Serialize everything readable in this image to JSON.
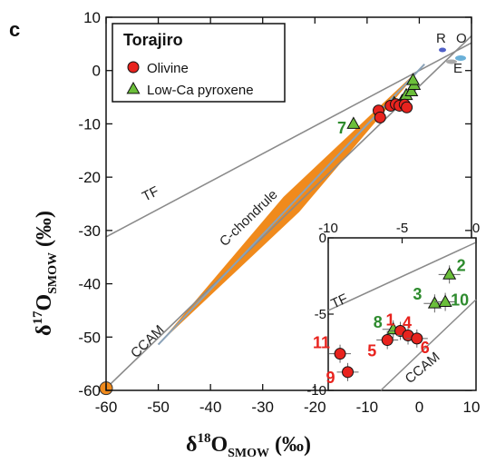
{
  "panel_label": "c",
  "chart_data": {
    "type": "scatter",
    "xlabel": "δ18OSMOW (‰)",
    "ylabel": "δ17OSMOW (‰)",
    "xlabel_parts": {
      "delta": "δ",
      "sup": "18",
      "main": "O",
      "sub": "SMOW",
      "unit": "(‰)"
    },
    "ylabel_parts": {
      "delta": "δ",
      "sup": "17",
      "main": "O",
      "sub": "SMOW",
      "unit": "(‰)"
    },
    "xlim": [
      -60,
      10
    ],
    "ylim": [
      -60,
      10
    ],
    "xticks": [
      "-60",
      "-50",
      "-40",
      "-30",
      "-20",
      "-10",
      "0",
      "10"
    ],
    "yticks": [
      "10",
      "0",
      "-10",
      "-20",
      "-30",
      "-40",
      "-50",
      "-60"
    ],
    "lines": [
      {
        "name": "TF",
        "x": [
          -60,
          10
        ],
        "y": [
          -31.2,
          5.2
        ]
      },
      {
        "name": "CCAM",
        "x": [
          -60,
          10
        ],
        "y": [
          -59.6,
          6.5
        ]
      },
      {
        "name": "C-chondrule",
        "x": [
          -50,
          1
        ],
        "y": [
          -51.4,
          1.2
        ]
      }
    ],
    "line_labels": [
      "TF",
      "CCAM",
      "C-chondrule"
    ],
    "legend": {
      "title": "Torajiro",
      "entries": [
        "Olivine",
        "Low-Ca pyroxene"
      ],
      "position": "top-left"
    },
    "series": [
      {
        "name": "Olivine",
        "color": "#e8231e",
        "marker": "circle",
        "points": [
          {
            "x": -7.8,
            "y": -7.5
          },
          {
            "x": -7.5,
            "y": -8.8
          },
          {
            "x": -5.5,
            "y": -6.6
          },
          {
            "x": -4.5,
            "y": -6.3
          },
          {
            "x": -3.8,
            "y": -6.6
          },
          {
            "x": -2.8,
            "y": -6.4
          },
          {
            "x": -2.4,
            "y": -6.9
          }
        ]
      },
      {
        "name": "Low-Ca pyroxene",
        "color": "#6bbf3a",
        "marker": "triangle",
        "points": [
          {
            "x": -12.6,
            "y": -10.0
          },
          {
            "x": -4.8,
            "y": -6.1
          },
          {
            "x": -3.3,
            "y": -5.7
          },
          {
            "x": -2.5,
            "y": -4.6
          },
          {
            "x": -1.5,
            "y": -3.9
          },
          {
            "x": -1.0,
            "y": -2.7
          },
          {
            "x": -1.2,
            "y": -1.8
          }
        ]
      }
    ],
    "label_7": {
      "text": "7",
      "color": "#2e8b2e"
    },
    "endmembers": [
      "R",
      "O",
      "E"
    ],
    "inset": {
      "xlim": [
        -10,
        0
      ],
      "ylim": [
        -10,
        0
      ],
      "xticks": [
        "-10",
        "-5",
        "0"
      ],
      "yticks": [
        "0",
        "-5",
        "-10"
      ],
      "data_xlim": [
        -15,
        10
      ],
      "data_ylim": [
        -10,
        0
      ],
      "line_labels": [
        "TF",
        "CCAM"
      ],
      "olivine": [
        {
          "label": "11",
          "x": -13.0,
          "y": -7.6
        },
        {
          "label": "9",
          "x": -11.7,
          "y": -8.8
        },
        {
          "label": "5",
          "x": -5.0,
          "y": -6.7
        },
        {
          "label": "1",
          "x": -2.8,
          "y": -6.1
        },
        {
          "label": "4",
          "x": -1.5,
          "y": -6.4
        },
        {
          "label": "6",
          "x": 0.0,
          "y": -6.6
        }
      ],
      "pyroxene": [
        {
          "label": "8",
          "x": -4.0,
          "y": -6.0
        },
        {
          "label": "3",
          "x": 3.0,
          "y": -4.3
        },
        {
          "label": "10",
          "x": 4.8,
          "y": -4.2
        },
        {
          "label": "2",
          "x": 5.5,
          "y": -2.4
        }
      ]
    }
  }
}
